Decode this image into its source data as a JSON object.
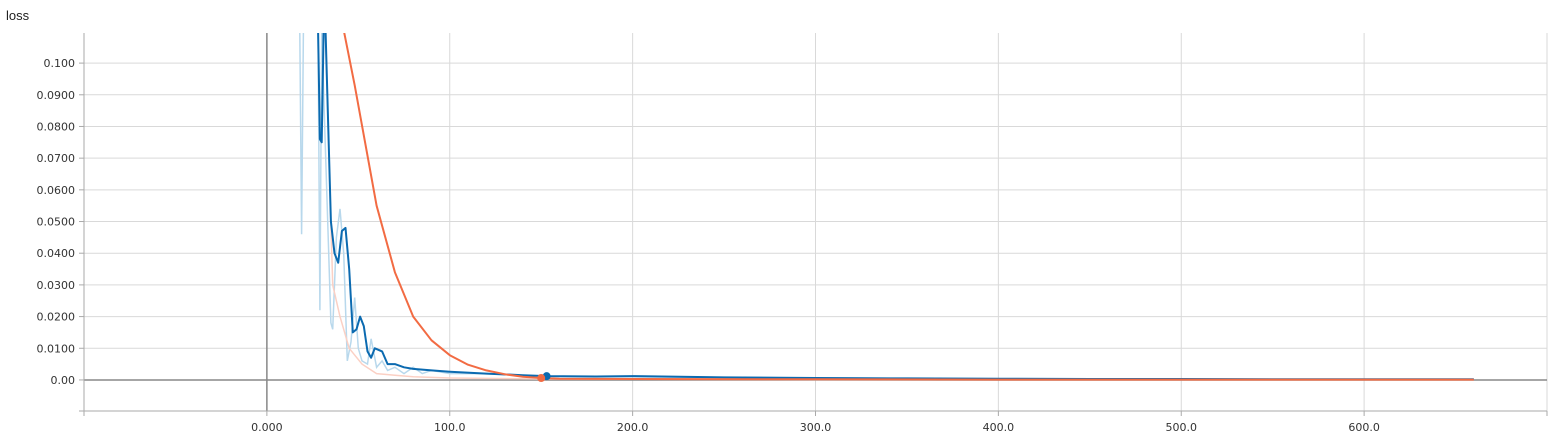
{
  "chart_data": {
    "type": "line",
    "title": "loss",
    "xlabel": "",
    "ylabel": "",
    "xlim": [
      -100,
      700
    ],
    "ylim": [
      -0.0098,
      0.1095
    ],
    "x_ticks": [
      0,
      100,
      200,
      300,
      400,
      500,
      600
    ],
    "x_tick_labels": [
      "0.000",
      "100.0",
      "200.0",
      "300.0",
      "400.0",
      "500.0",
      "600.0"
    ],
    "y_ticks": [
      0,
      0.01,
      0.02,
      0.03,
      0.04,
      0.05,
      0.06,
      0.07,
      0.08,
      0.09,
      0.1
    ],
    "y_tick_labels": [
      "0.00",
      "0.0100",
      "0.0200",
      "0.0300",
      "0.0400",
      "0.0500",
      "0.0600",
      "0.0700",
      "0.0800",
      "0.0900",
      "0.100"
    ],
    "grid": true,
    "series": [
      {
        "color": "#0b6ab0",
        "raw_color": "#b8d8ec",
        "values": [
          [
            28,
            0.11
          ],
          [
            29,
            0.076
          ],
          [
            30,
            0.075
          ],
          [
            31,
            0.11
          ],
          [
            32,
            0.112
          ],
          [
            35,
            0.05
          ],
          [
            37,
            0.04
          ],
          [
            39,
            0.037
          ],
          [
            41,
            0.047
          ],
          [
            43,
            0.048
          ],
          [
            45,
            0.035
          ],
          [
            47,
            0.015
          ],
          [
            49,
            0.016
          ],
          [
            51,
            0.02
          ],
          [
            53,
            0.017
          ],
          [
            55,
            0.009
          ],
          [
            57,
            0.007
          ],
          [
            59,
            0.01
          ],
          [
            63,
            0.009
          ],
          [
            66,
            0.005
          ],
          [
            70,
            0.005
          ],
          [
            75,
            0.004
          ],
          [
            80,
            0.0035
          ],
          [
            90,
            0.003
          ],
          [
            100,
            0.0026
          ],
          [
            120,
            0.002
          ],
          [
            140,
            0.0015
          ],
          [
            153,
            0.0012
          ],
          [
            180,
            0.0011
          ],
          [
            200,
            0.0012
          ],
          [
            250,
            0.0008
          ],
          [
            300,
            0.0006
          ],
          [
            350,
            0.0005
          ],
          [
            400,
            0.0004
          ],
          [
            450,
            0.0003
          ],
          [
            500,
            0.0003
          ],
          [
            550,
            0.0002
          ],
          [
            600,
            0.0002
          ],
          [
            660,
            0.0002
          ]
        ],
        "raw_values": [
          [
            18,
            0.11
          ],
          [
            19,
            0.046
          ],
          [
            20,
            0.11
          ],
          [
            28,
            0.11
          ],
          [
            29,
            0.022
          ],
          [
            30,
            0.11
          ],
          [
            35,
            0.018
          ],
          [
            36,
            0.016
          ],
          [
            38,
            0.045
          ],
          [
            40,
            0.054
          ],
          [
            42,
            0.04
          ],
          [
            44,
            0.006
          ],
          [
            46,
            0.012
          ],
          [
            48,
            0.026
          ],
          [
            50,
            0.01
          ],
          [
            52,
            0.006
          ],
          [
            55,
            0.005
          ],
          [
            57,
            0.013
          ],
          [
            60,
            0.004
          ],
          [
            63,
            0.006
          ],
          [
            66,
            0.003
          ],
          [
            70,
            0.004
          ],
          [
            75,
            0.002
          ],
          [
            80,
            0.004
          ],
          [
            85,
            0.002
          ],
          [
            90,
            0.003
          ],
          [
            100,
            0.002
          ],
          [
            120,
            0.002
          ],
          [
            150,
            0.0012
          ],
          [
            200,
            0.001
          ],
          [
            300,
            0.0006
          ],
          [
            400,
            0.0004
          ],
          [
            500,
            0.0003
          ],
          [
            600,
            0.0002
          ],
          [
            660,
            0.0002
          ]
        ]
      },
      {
        "color": "#f26b43",
        "raw_color": "#fbd0c4",
        "values": [
          [
            38,
            0.122
          ],
          [
            48,
            0.093
          ],
          [
            60,
            0.055
          ],
          [
            70,
            0.034
          ],
          [
            80,
            0.02
          ],
          [
            90,
            0.0125
          ],
          [
            100,
            0.0078
          ],
          [
            110,
            0.0048
          ],
          [
            120,
            0.003
          ],
          [
            130,
            0.0018
          ],
          [
            140,
            0.001
          ],
          [
            150,
            0.0006
          ],
          [
            160,
            0.0004
          ],
          [
            200,
            0.0003
          ],
          [
            300,
            0.0002
          ],
          [
            400,
            0.0001
          ],
          [
            500,
            0.0001
          ],
          [
            600,
            0.0001
          ],
          [
            660,
            0.0001
          ]
        ],
        "raw_values": [
          [
            32,
            0.11
          ],
          [
            36,
            0.03
          ],
          [
            40,
            0.02
          ],
          [
            45,
            0.01
          ],
          [
            52,
            0.005
          ],
          [
            60,
            0.002
          ],
          [
            70,
            0.0015
          ],
          [
            80,
            0.001
          ],
          [
            100,
            0.0006
          ],
          [
            150,
            0.0003
          ],
          [
            300,
            0.0001
          ],
          [
            660,
            0.0001
          ]
        ]
      }
    ],
    "markers": [
      {
        "series": 0,
        "x": 153,
        "y": 0.0012
      },
      {
        "series": 1,
        "x": 150,
        "y": 0.0006
      }
    ]
  }
}
